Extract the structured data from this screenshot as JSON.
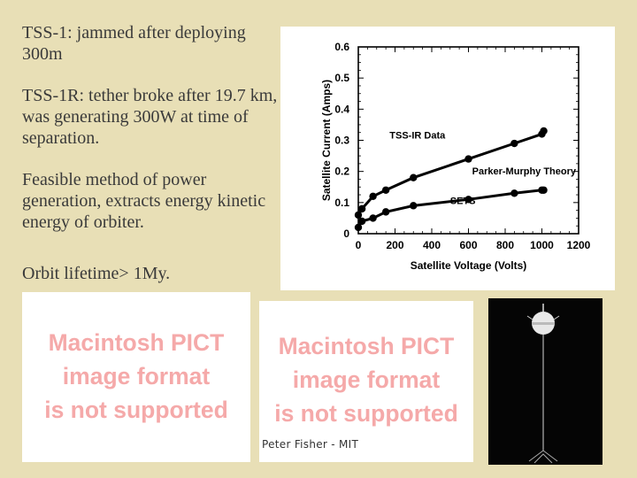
{
  "bullets": [
    "TSS-1: jammed after deploying 300m",
    "TSS-1R: tether broke after 19.7 km,  was generating 300W at time of separation.",
    "Feasible method of power generation, extracts energy kinetic energy of orbiter.",
    "Orbit lifetime> 1My."
  ],
  "pict_notice": {
    "line1": "Macintosh PICT",
    "line2": "image format",
    "line3": "is not supported"
  },
  "credit": "Peter Fisher - MIT",
  "chart_data": {
    "type": "line",
    "xlabel": "Satellite Voltage (Volts)",
    "ylabel": "Satellite Current (Amps)",
    "xlim": [
      0,
      1200
    ],
    "ylim": [
      0,
      0.6
    ],
    "x_ticks": [
      "0",
      "200",
      "400",
      "600",
      "800",
      "1000",
      "1200"
    ],
    "y_ticks": [
      "0",
      "0.1",
      "0.2",
      "0.3",
      "0.4",
      "0.5",
      "0.6"
    ],
    "grid": false,
    "series": [
      {
        "name": "TSS-IR Data",
        "x": [
          0,
          20,
          80,
          150,
          300,
          600,
          850,
          1000,
          1010
        ],
        "y": [
          0.06,
          0.08,
          0.12,
          0.14,
          0.18,
          0.24,
          0.29,
          0.32,
          0.33
        ]
      },
      {
        "name": "Parker-Murphy Theory",
        "x": [
          0,
          20,
          80,
          150,
          300,
          600,
          850,
          1000,
          1010
        ],
        "y": [
          0.02,
          0.04,
          0.05,
          0.07,
          0.09,
          0.11,
          0.13,
          0.14,
          0.14
        ]
      }
    ],
    "annotations": [
      "TSS-IR Data",
      "Parker-Murphy Theory",
      "SETS"
    ]
  }
}
